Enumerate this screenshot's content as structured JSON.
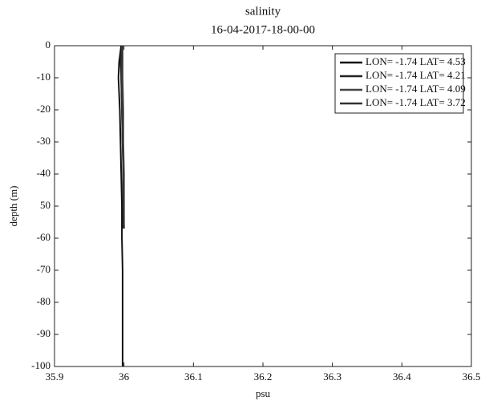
{
  "chart_data": {
    "type": "line",
    "title": "salinity",
    "subtitle": "16-04-2017-18-00-00",
    "xlabel": "psu",
    "ylabel": "depth (m)",
    "xlim": [
      35.9,
      36.5
    ],
    "xticks": [
      35.9,
      36,
      36.1,
      36.2,
      36.3,
      36.4,
      36.5
    ],
    "ylim": [
      -100,
      0
    ],
    "yticks": [
      0,
      -10,
      -20,
      -30,
      -40,
      {
        "value": -50,
        "label": "50"
      },
      -60,
      -70,
      -80,
      -90,
      -100
    ],
    "legend": "upper right",
    "series": [
      {
        "name": "LON= -1.74 LAT= 4.53",
        "color": "#111111",
        "x": [
          35.996,
          35.993,
          35.992,
          35.994,
          35.995,
          35.996,
          35.997,
          35.997,
          35.998,
          35.998,
          35.998,
          35.998
        ],
        "y": [
          0,
          -5,
          -10,
          -20,
          -30,
          -40,
          -50,
          -60,
          -70,
          -80,
          -90,
          -100
        ]
      },
      {
        "name": "LON= -1.74 LAT= 4.21",
        "color": "#222222",
        "x": [
          35.997,
          35.995,
          35.996,
          35.997,
          35.998,
          35.999,
          35.999,
          35.999
        ],
        "y": [
          0,
          -5,
          -10,
          -20,
          -30,
          -40,
          -50,
          -57
        ]
      },
      {
        "name": "LON= -1.74 LAT= 4.09",
        "color": "#444444",
        "x": [
          35.998,
          35.998,
          35.999,
          35.999,
          36.0,
          36.0,
          36.0
        ],
        "y": [
          0,
          -10,
          -20,
          -30,
          -40,
          -50,
          -57
        ]
      },
      {
        "name": "LON= -1.74 LAT= 3.72",
        "color": "#333333",
        "x": [
          35.997,
          35.996,
          35.997,
          35.998,
          35.999,
          35.999,
          36.0
        ],
        "y": [
          0,
          -10,
          -20,
          -30,
          -40,
          -50,
          -57
        ]
      }
    ]
  }
}
